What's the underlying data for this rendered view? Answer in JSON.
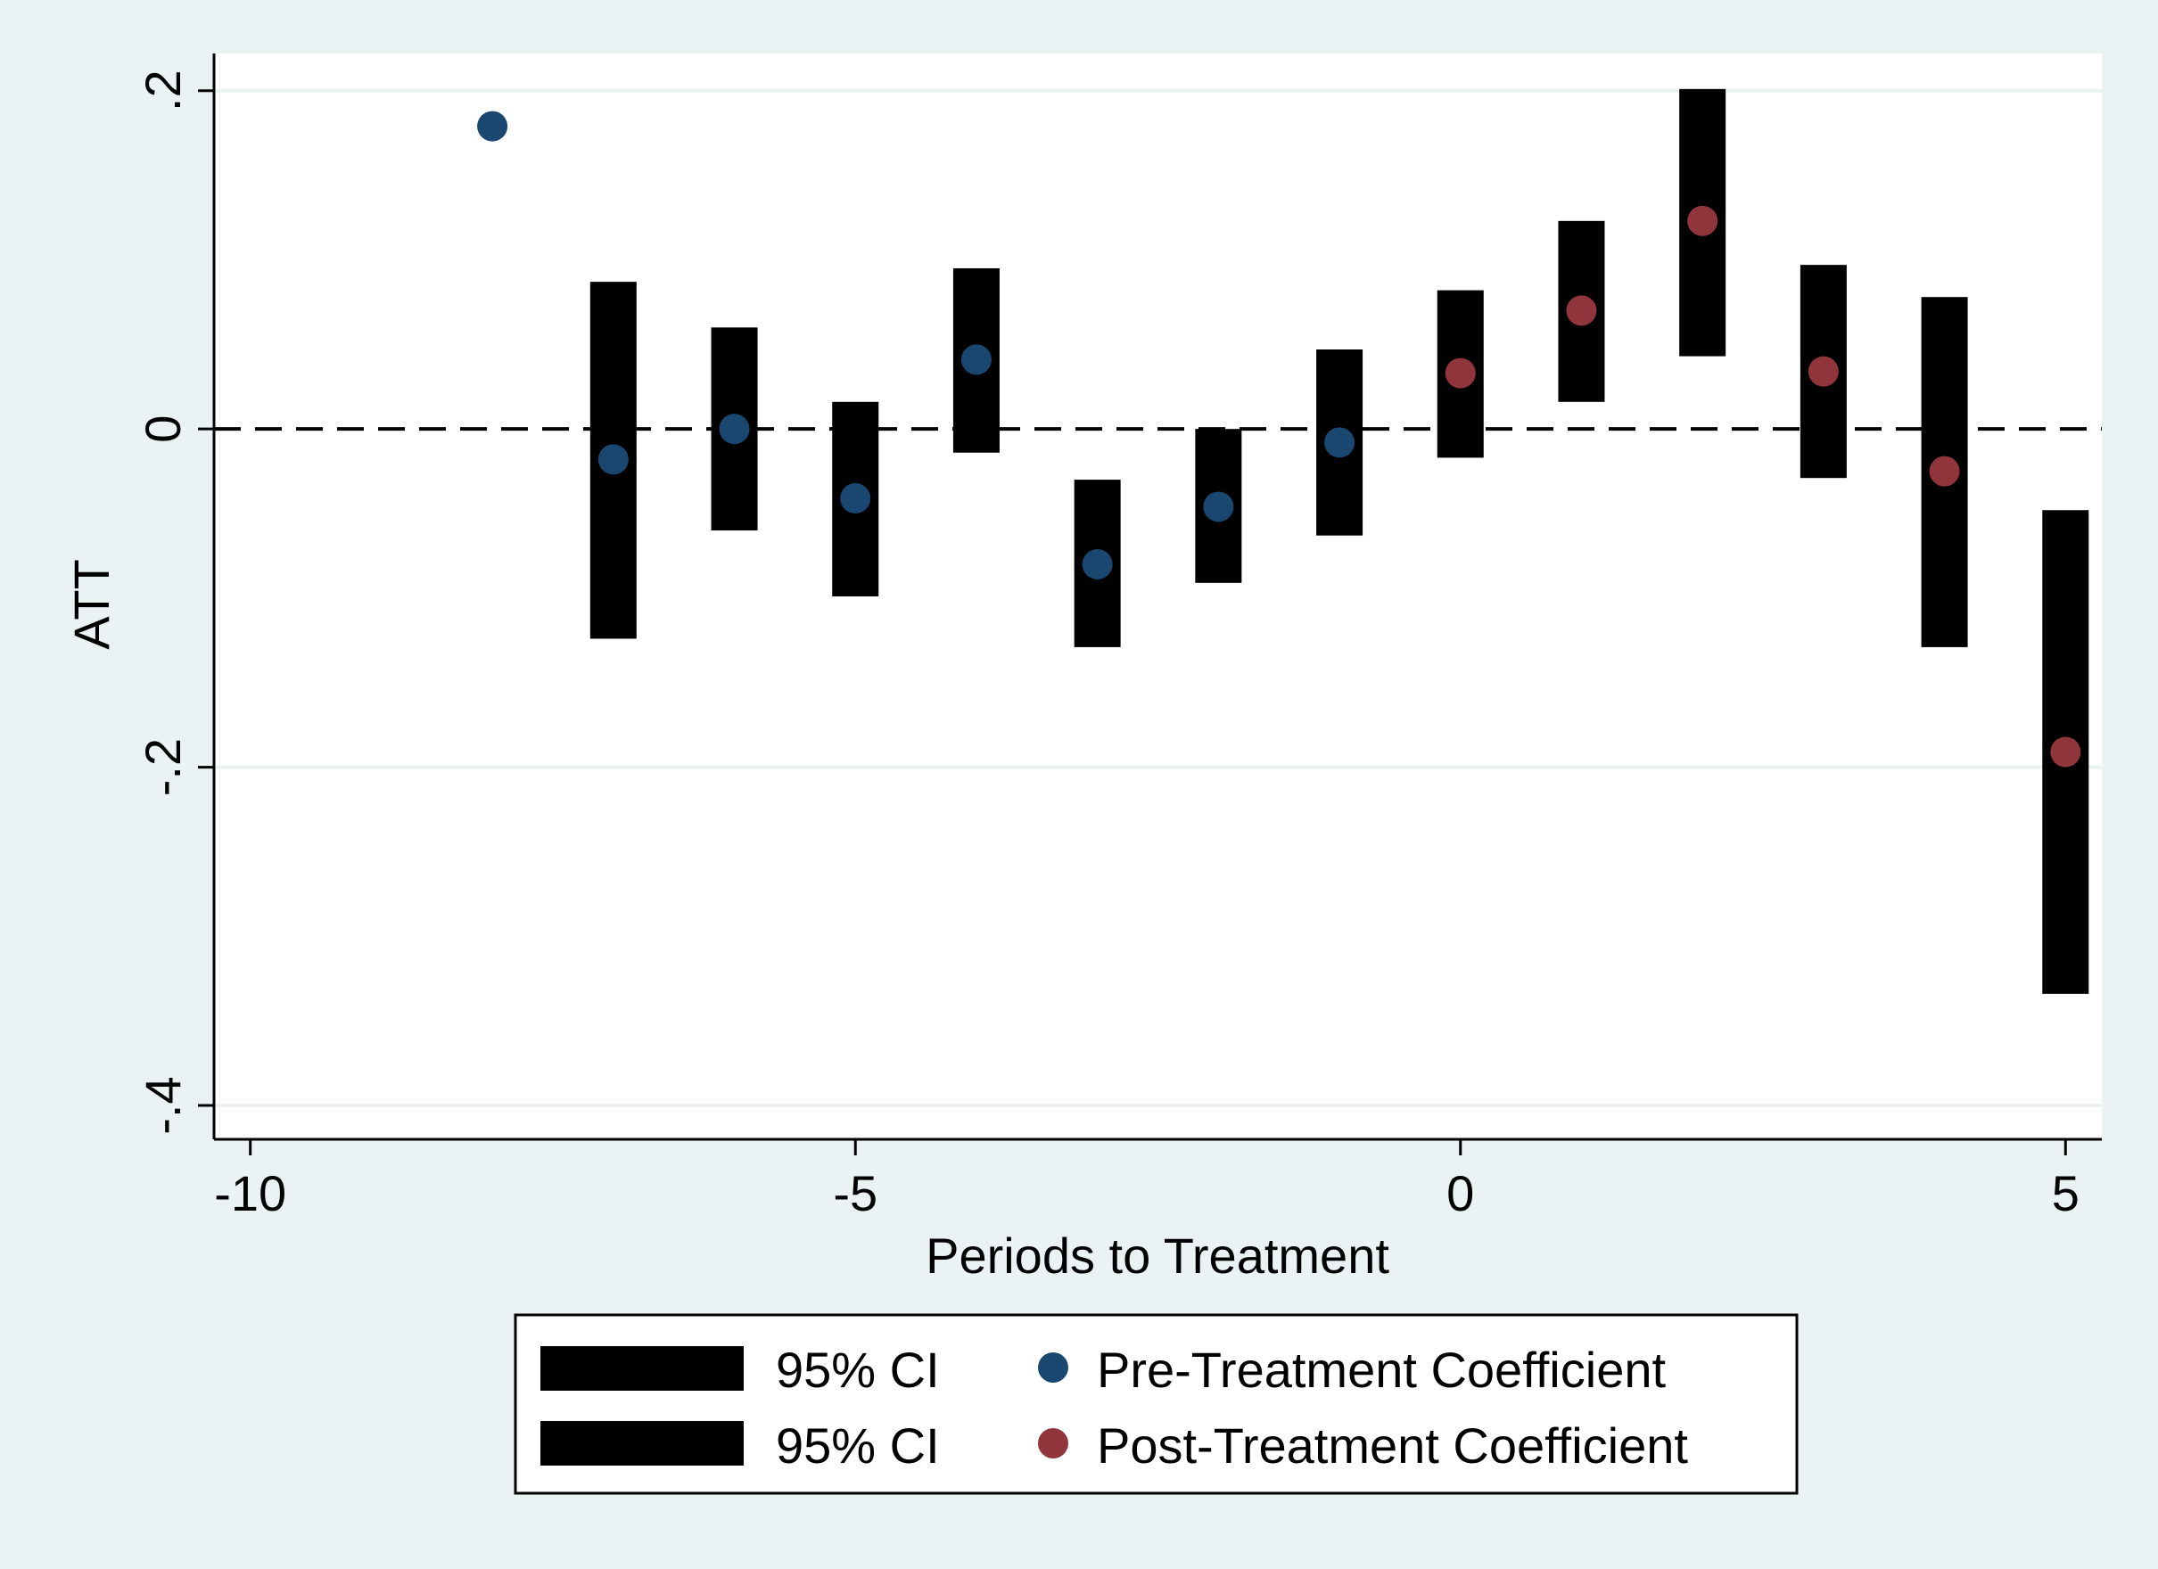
{
  "chart_data": {
    "type": "scatter",
    "title": "",
    "xlabel": "Periods to Treatment",
    "ylabel": "ATT",
    "xlim": [
      -10.3,
      5.3
    ],
    "ylim": [
      -0.42,
      0.222
    ],
    "x_ticks": [
      -10,
      -5,
      0,
      5
    ],
    "x_tick_labels": [
      "-10",
      "-5",
      "0",
      "5"
    ],
    "y_ticks": [
      -0.4,
      -0.2,
      0,
      0.2
    ],
    "y_tick_labels": [
      "-.4",
      "-.2",
      "0",
      ".2"
    ],
    "grid": true,
    "reference_line": {
      "y": 0,
      "style": "dashed"
    },
    "legend": {
      "placement": "bottom",
      "entries": [
        {
          "label": "95% CI",
          "kind": "ci"
        },
        {
          "label": "Pre-Treatment Coefficient",
          "kind": "point",
          "color": "#1a476f"
        },
        {
          "label": "95% CI",
          "kind": "ci"
        },
        {
          "label": "Post-Treatment Coefficient",
          "kind": "point",
          "color": "#90353b"
        }
      ]
    },
    "series": [
      {
        "name": "Pre-Treatment Coefficient",
        "color": "#1a476f",
        "points": [
          {
            "x": -8,
            "y": 0.179,
            "lo": null,
            "hi": null
          },
          {
            "x": -7,
            "y": -0.018,
            "lo": -0.124,
            "hi": 0.087
          },
          {
            "x": -6,
            "y": 0.0,
            "lo": -0.06,
            "hi": 0.06
          },
          {
            "x": -5,
            "y": -0.041,
            "lo": -0.099,
            "hi": 0.016
          },
          {
            "x": -4,
            "y": 0.041,
            "lo": -0.014,
            "hi": 0.095
          },
          {
            "x": -3,
            "y": -0.08,
            "lo": -0.129,
            "hi": -0.03
          },
          {
            "x": -2,
            "y": -0.046,
            "lo": -0.091,
            "hi": 0.0
          },
          {
            "x": -1,
            "y": -0.008,
            "lo": -0.063,
            "hi": 0.047
          }
        ]
      },
      {
        "name": "Post-Treatment Coefficient",
        "color": "#90353b",
        "points": [
          {
            "x": 0,
            "y": 0.033,
            "lo": -0.017,
            "hi": 0.082
          },
          {
            "x": 1,
            "y": 0.07,
            "lo": 0.016,
            "hi": 0.123
          },
          {
            "x": 2,
            "y": 0.123,
            "lo": 0.043,
            "hi": 0.201
          },
          {
            "x": 3,
            "y": 0.034,
            "lo": -0.029,
            "hi": 0.097
          },
          {
            "x": 4,
            "y": -0.025,
            "lo": -0.129,
            "hi": 0.078
          },
          {
            "x": 5,
            "y": -0.191,
            "lo": -0.334,
            "hi": -0.048
          }
        ]
      }
    ]
  }
}
